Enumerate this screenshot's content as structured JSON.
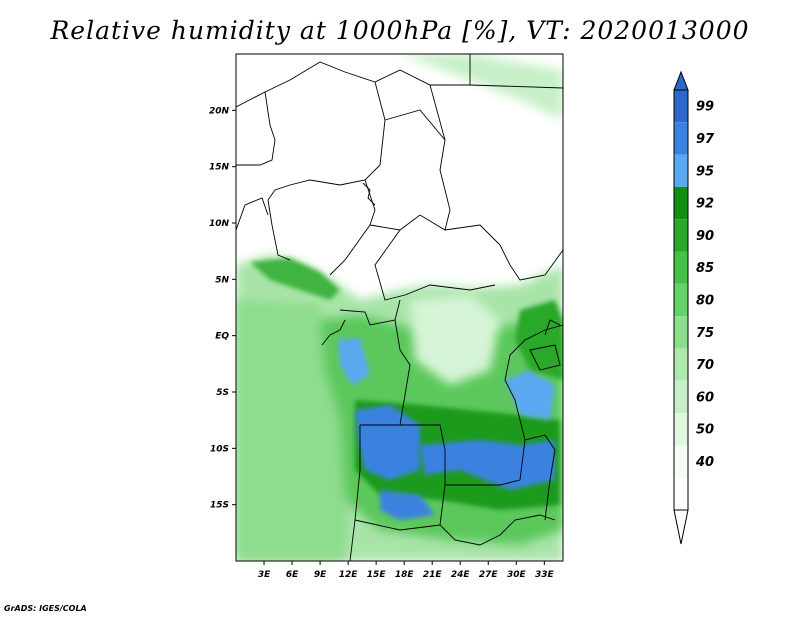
{
  "title": "Relative humidity at 1000hPa [%], VT: 2020013000",
  "footer": "GrADS: IGES/COLA",
  "map": {
    "lon_range": [
      0,
      35
    ],
    "lat_range": [
      -20,
      25
    ],
    "lat_ticks": [
      {
        "value": 20,
        "label": "20N"
      },
      {
        "value": 15,
        "label": "15N"
      },
      {
        "value": 10,
        "label": "10N"
      },
      {
        "value": 5,
        "label": "5N"
      },
      {
        "value": 0,
        "label": "EQ"
      },
      {
        "value": -5,
        "label": "5S"
      },
      {
        "value": -10,
        "label": "10S"
      },
      {
        "value": -15,
        "label": "15S"
      }
    ],
    "lon_ticks": [
      {
        "value": 3,
        "label": "3E"
      },
      {
        "value": 6,
        "label": "6E"
      },
      {
        "value": 9,
        "label": "9E"
      },
      {
        "value": 12,
        "label": "12E"
      },
      {
        "value": 15,
        "label": "15E"
      },
      {
        "value": 18,
        "label": "18E"
      },
      {
        "value": 21,
        "label": "21E"
      },
      {
        "value": 24,
        "label": "24E"
      },
      {
        "value": 27,
        "label": "27E"
      },
      {
        "value": 30,
        "label": "30E"
      },
      {
        "value": 33,
        "label": "33E"
      }
    ]
  },
  "colorbar": {
    "levels": [
      "99",
      "97",
      "95",
      "92",
      "90",
      "85",
      "80",
      "75",
      "70",
      "60",
      "50",
      "40"
    ],
    "colors": [
      "#2c68c8",
      "#3a82e0",
      "#5aa8f0",
      "#118f11",
      "#2aa82a",
      "#46c046",
      "#64d264",
      "#8ae08a",
      "#aee8ae",
      "#c8f0c8",
      "#e0f8e0",
      "#f6fdf6",
      "#ffffff"
    ],
    "top_color": "#2c68c8",
    "bottom_color": "#ffffff"
  }
}
